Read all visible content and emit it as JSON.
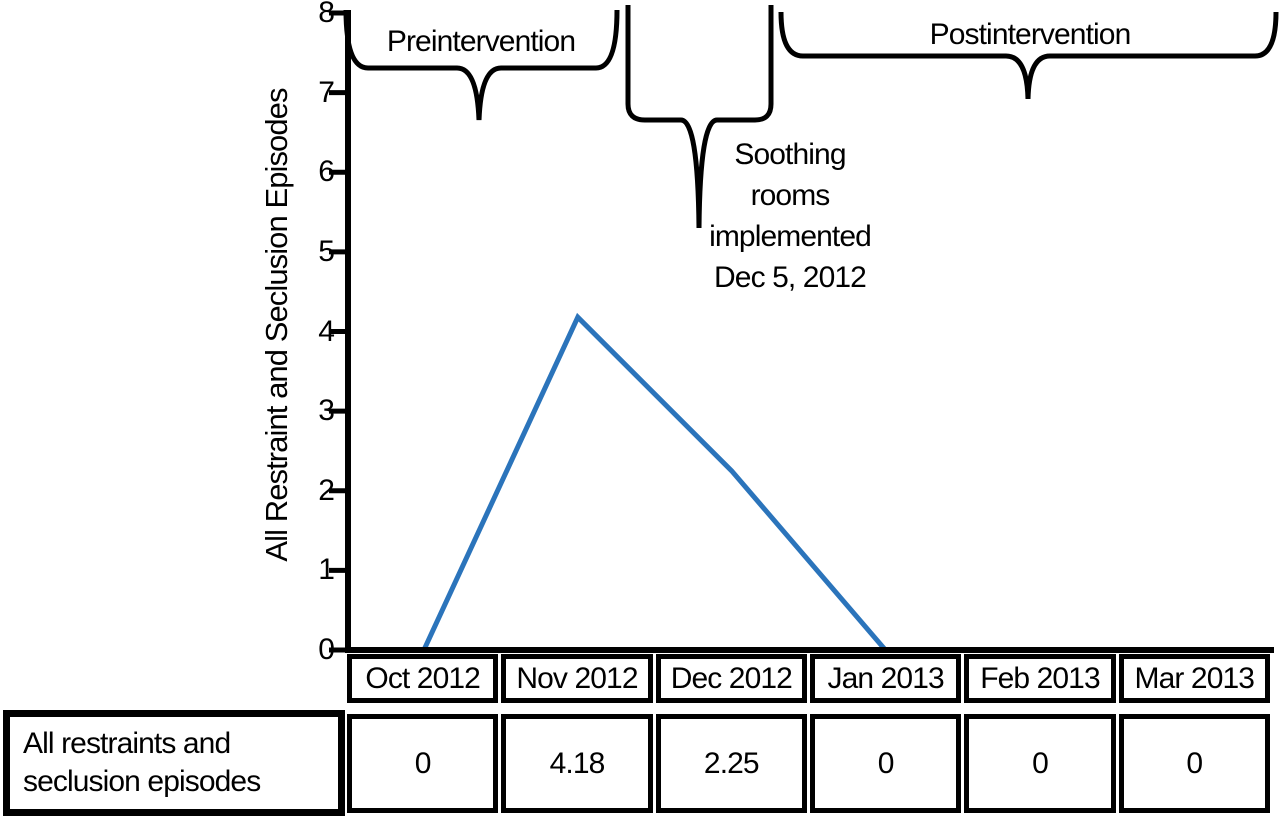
{
  "figure": {
    "yaxis_label": "All Restraint and Seclusion Episodes",
    "annotations": {
      "preintervention": "Preintervention",
      "postintervention": "Postintervention",
      "soothing_rooms": "Soothing\nrooms\nimplemented\nDec 5, 2012"
    }
  },
  "table": {
    "row_label": "All restraints and\nseclusion episodes",
    "headers": [
      "Oct 2012",
      "Nov 2012",
      "Dec 2012",
      "Jan 2013",
      "Feb 2013",
      "Mar 2013"
    ],
    "values": [
      "0",
      "4.18",
      "2.25",
      "0",
      "0",
      "0"
    ]
  },
  "chart_data": {
    "type": "line",
    "categories": [
      "Oct 2012",
      "Nov 2012",
      "Dec 2012",
      "Jan 2013",
      "Feb 2013",
      "Mar 2013"
    ],
    "series": [
      {
        "name": "All restraints and seclusion episodes",
        "values": [
          0,
          4.18,
          2.25,
          0,
          0,
          0
        ]
      }
    ],
    "title": "",
    "xlabel": "",
    "ylabel": "All Restraint and Seclusion Episodes",
    "ylim": [
      0,
      8
    ],
    "yticks": [
      0,
      1,
      2,
      3,
      4,
      5,
      6,
      7,
      8
    ],
    "grid": false,
    "legend_position": "none",
    "annotations": [
      {
        "label": "Preintervention",
        "span": [
          "Oct 2012",
          "Nov 2012"
        ]
      },
      {
        "label": "Soothing rooms implemented Dec 5, 2012",
        "span": [
          "Dec 2012"
        ]
      },
      {
        "label": "Postintervention",
        "span": [
          "Jan 2013",
          "Mar 2013"
        ]
      }
    ],
    "line_color": "#2B74BB"
  },
  "colors": {
    "line": "#2B74BB",
    "ink": "#000000",
    "background": "#FFFFFF"
  }
}
